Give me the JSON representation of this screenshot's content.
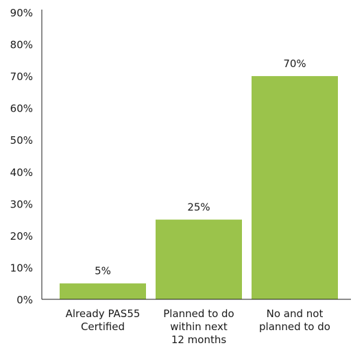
{
  "chart_data": {
    "type": "bar",
    "categories": [
      [
        "Already PAS55",
        "Certified"
      ],
      [
        "Planned to do",
        "within next",
        "12 months"
      ],
      [
        "No and not",
        "planned to do"
      ]
    ],
    "values": [
      5,
      25,
      70
    ],
    "data_labels": [
      "5%",
      "25%",
      "70%"
    ],
    "y_ticks": [
      "0%",
      "10%",
      "20%",
      "30%",
      "40%",
      "50%",
      "60%",
      "70%",
      "80%",
      "90%"
    ],
    "ylim": [
      0,
      90
    ],
    "title": "",
    "xlabel": "",
    "ylabel": "",
    "grid": false,
    "bar_color": "#9bc34b",
    "axis_color": "#1a1a1a"
  }
}
